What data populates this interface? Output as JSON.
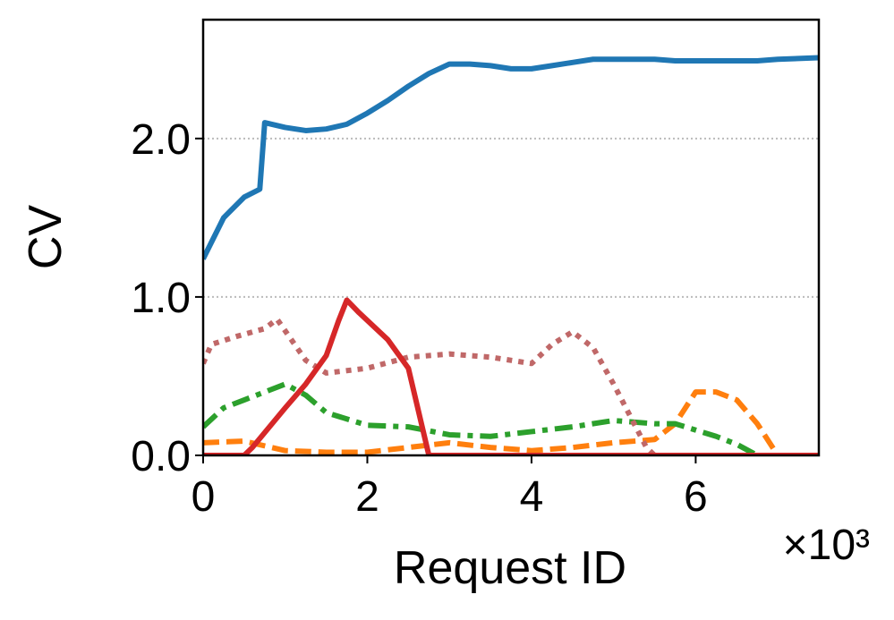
{
  "chart_data": {
    "type": "line",
    "xlabel": "Request ID",
    "ylabel": "CV",
    "x_offset_label": "×10³",
    "xlim": [
      0,
      7.5
    ],
    "xticks": [
      0,
      2,
      4,
      6
    ],
    "ylim": [
      0,
      2.75
    ],
    "yticks": [
      {
        "value": 0,
        "label": "0.0"
      },
      {
        "value": 1,
        "label": "1.0"
      },
      {
        "value": 2,
        "label": "2.0"
      }
    ],
    "grid": "y",
    "series": [
      {
        "color": "#1f77b4",
        "style": "solid",
        "x": [
          0,
          0.25,
          0.5,
          0.69,
          0.75,
          1.0,
          1.25,
          1.5,
          1.75,
          2.0,
          2.25,
          2.5,
          2.75,
          3.0,
          3.25,
          3.5,
          3.75,
          4.0,
          4.25,
          4.5,
          4.75,
          5.0,
          5.5,
          5.75,
          6.0,
          6.5,
          6.75,
          7.0,
          7.5
        ],
        "values": [
          1.24,
          1.5,
          1.63,
          1.68,
          2.1,
          2.07,
          2.05,
          2.06,
          2.09,
          2.16,
          2.24,
          2.33,
          2.41,
          2.47,
          2.47,
          2.46,
          2.44,
          2.44,
          2.46,
          2.48,
          2.5,
          2.5,
          2.5,
          2.49,
          2.49,
          2.49,
          2.49,
          2.5,
          2.51
        ]
      },
      {
        "color": "#d62728",
        "style": "solid",
        "x": [
          0,
          0.5,
          0.6,
          1.0,
          1.25,
          1.5,
          1.65,
          1.75,
          1.9,
          2.25,
          2.5,
          2.75,
          7.5
        ],
        "values": [
          0,
          0,
          0.05,
          0.3,
          0.45,
          0.63,
          0.85,
          0.98,
          0.9,
          0.73,
          0.55,
          0,
          0
        ]
      },
      {
        "color": "#c06868",
        "style": "dotted",
        "x": [
          0,
          0.1,
          0.4,
          0.75,
          0.9,
          1.25,
          1.5,
          2.0,
          2.5,
          3.0,
          3.5,
          4.0,
          4.25,
          4.5,
          4.75,
          5.0,
          5.25,
          5.4,
          5.5,
          7.5
        ],
        "values": [
          0.58,
          0.7,
          0.75,
          0.8,
          0.86,
          0.6,
          0.52,
          0.55,
          0.62,
          0.64,
          0.62,
          0.58,
          0.7,
          0.78,
          0.68,
          0.45,
          0.2,
          0.05,
          0,
          0
        ]
      },
      {
        "color": "#2ca02c",
        "style": "dashdot",
        "x": [
          0,
          0.25,
          0.5,
          1.0,
          1.25,
          1.5,
          2.0,
          2.5,
          3.0,
          3.5,
          4.0,
          4.5,
          5.0,
          5.5,
          5.75,
          6.25,
          6.5,
          6.75,
          7.5
        ],
        "values": [
          0.18,
          0.3,
          0.35,
          0.45,
          0.38,
          0.27,
          0.19,
          0.18,
          0.13,
          0.12,
          0.15,
          0.18,
          0.22,
          0.2,
          0.2,
          0.12,
          0.07,
          0,
          0
        ]
      },
      {
        "color": "#ff7f0e",
        "style": "dashed",
        "x": [
          0,
          0.5,
          0.75,
          1.0,
          1.5,
          2.0,
          2.5,
          3.0,
          3.5,
          4.0,
          4.5,
          5.0,
          5.5,
          5.75,
          6.0,
          6.25,
          6.5,
          6.75,
          7.0,
          7.5
        ],
        "values": [
          0.08,
          0.09,
          0.06,
          0.03,
          0.02,
          0.02,
          0.05,
          0.08,
          0.05,
          0.03,
          0.05,
          0.08,
          0.1,
          0.2,
          0.4,
          0.4,
          0.35,
          0.2,
          0,
          0
        ]
      }
    ]
  }
}
